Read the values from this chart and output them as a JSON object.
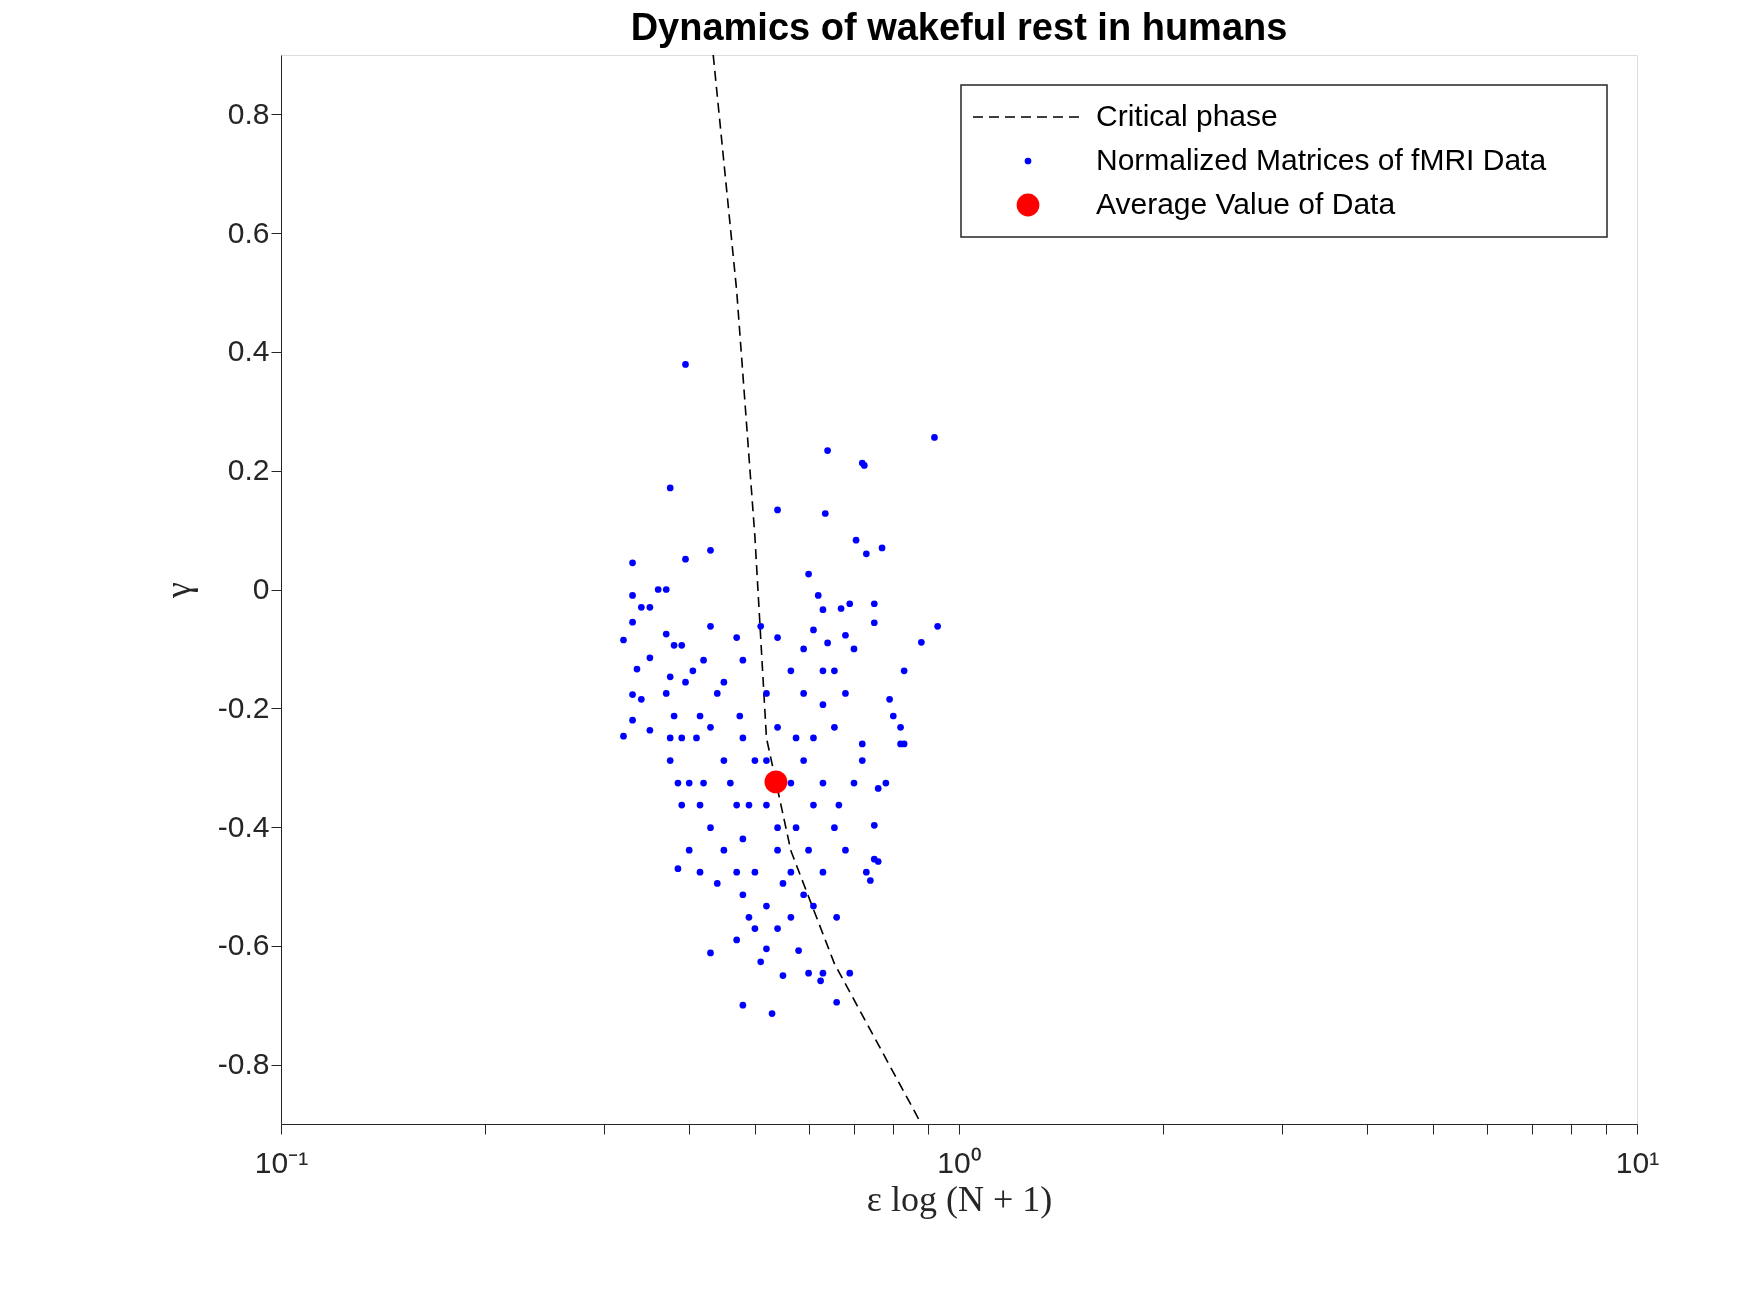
{
  "chart_data": {
    "type": "scatter",
    "title": "Dynamics of wakeful rest in humans",
    "xlabel": "ε log (N + 1)",
    "ylabel": "γ",
    "log": "x",
    "xlim": [
      0.1,
      10
    ],
    "ylim": [
      -0.9,
      0.9
    ],
    "xticks": [
      {
        "value": 0.1,
        "label": "10⁻¹"
      },
      {
        "value": 0.2,
        "label": null
      },
      {
        "value": 0.3,
        "label": null
      },
      {
        "value": 0.4,
        "label": null
      },
      {
        "value": 0.5,
        "label": null
      },
      {
        "value": 0.6,
        "label": null
      },
      {
        "value": 0.7,
        "label": null
      },
      {
        "value": 0.8,
        "label": null
      },
      {
        "value": 0.9,
        "label": null
      },
      {
        "value": 1,
        "label": "10⁰"
      },
      {
        "value": 2,
        "label": null
      },
      {
        "value": 3,
        "label": null
      },
      {
        "value": 4,
        "label": null
      },
      {
        "value": 5,
        "label": null
      },
      {
        "value": 6,
        "label": null
      },
      {
        "value": 7,
        "label": null
      },
      {
        "value": 8,
        "label": null
      },
      {
        "value": 9,
        "label": null
      },
      {
        "value": 10,
        "label": "10¹"
      }
    ],
    "yticks": [
      -0.8,
      -0.6,
      -0.4,
      -0.2,
      0,
      0.2,
      0.4,
      0.6,
      0.8
    ],
    "grid": false,
    "legend": "top right",
    "series": [
      {
        "name": "Critical phase",
        "type": "line",
        "line_style": "dashed",
        "marker": "none",
        "color": "#000000",
        "x": [
          0.434,
          0.47,
          0.5,
          0.52,
          0.565,
          0.655,
          0.88
        ],
        "values": [
          0.9,
          0.503,
          0.089,
          -0.25,
          -0.44,
          -0.63,
          -0.9
        ]
      },
      {
        "name": "Normalized Matrices of fMRI Data",
        "marker": "circle",
        "color": "#0000ff",
        "x": [
          0.395,
          0.375,
          0.33,
          0.395,
          0.43,
          0.54,
          0.64,
          0.635,
          0.72,
          0.725,
          0.92,
          0.705,
          0.73,
          0.77,
          0.93,
          0.88,
          0.6,
          0.32,
          0.33,
          0.33,
          0.34,
          0.35,
          0.36,
          0.37,
          0.37,
          0.33,
          0.32,
          0.33,
          0.34,
          0.335,
          0.35,
          0.38,
          0.375,
          0.39,
          0.42,
          0.405,
          0.395,
          0.37,
          0.38,
          0.375,
          0.35,
          0.385,
          0.43,
          0.48,
          0.53,
          0.45,
          0.47,
          0.43,
          0.62,
          0.63,
          0.67,
          0.69,
          0.75,
          0.75,
          0.68,
          0.7,
          0.64,
          0.61,
          0.83,
          0.79,
          0.82,
          0.8,
          0.82,
          0.83,
          0.78,
          0.76,
          0.72,
          0.72,
          0.7,
          0.75,
          0.75,
          0.76,
          0.74,
          0.73,
          0.66,
          0.69,
          0.66,
          0.63,
          0.625,
          0.6,
          0.58,
          0.55,
          0.51,
          0.52,
          0.47,
          0.5,
          0.565,
          0.655,
          0.63,
          0.48,
          0.5,
          0.45,
          0.47,
          0.52,
          0.565,
          0.59,
          0.61,
          0.54,
          0.48,
          0.43,
          0.415,
          0.4,
          0.41,
          0.43,
          0.39,
          0.45,
          0.5,
          0.565,
          0.63,
          0.655,
          0.68,
          0.48,
          0.52,
          0.59,
          0.54,
          0.52,
          0.565,
          0.54,
          0.51,
          0.48,
          0.59,
          0.655,
          0.68,
          0.61,
          0.63,
          0.665,
          0.4,
          0.415,
          0.44,
          0.47,
          0.39,
          0.385,
          0.42,
          0.46,
          0.49,
          0.575,
          0.6,
          0.54,
          0.55,
          0.61,
          0.54,
          0.49,
          0.575,
          0.52,
          0.475,
          0.44,
          0.415,
          0.375,
          0.59,
          0.63
        ],
        "values": [
          0.379,
          0.171,
          0.045,
          0.051,
          0.066,
          0.134,
          0.234,
          0.128,
          0.213,
          0.209,
          0.256,
          0.083,
          0.06,
          0.07,
          -0.062,
          -0.089,
          0.026,
          -0.085,
          -0.01,
          -0.055,
          -0.03,
          -0.03,
          0,
          0,
          -0.075,
          -0.177,
          -0.247,
          -0.22,
          -0.185,
          -0.134,
          -0.115,
          -0.094,
          -0.147,
          -0.094,
          -0.119,
          -0.137,
          -0.156,
          -0.175,
          -0.213,
          -0.288,
          -0.237,
          -0.47,
          -0.612,
          -0.7,
          -0.714,
          -0.156,
          -0.081,
          -0.062,
          -0.01,
          -0.034,
          -0.032,
          -0.024,
          -0.024,
          -0.056,
          -0.077,
          -0.1,
          -0.09,
          -0.068,
          -0.137,
          -0.185,
          -0.232,
          -0.213,
          -0.26,
          -0.26,
          -0.326,
          -0.335,
          -0.26,
          -0.288,
          -0.326,
          -0.397,
          -0.454,
          -0.458,
          -0.49,
          -0.476,
          -0.552,
          -0.646,
          -0.695,
          -0.646,
          -0.659,
          -0.646,
          -0.608,
          -0.65,
          -0.627,
          -0.605,
          -0.59,
          -0.571,
          -0.552,
          -0.232,
          -0.194,
          -0.25,
          -0.288,
          -0.288,
          -0.363,
          -0.363,
          -0.326,
          -0.288,
          -0.363,
          -0.401,
          -0.42,
          -0.401,
          -0.363,
          -0.326,
          -0.25,
          -0.232,
          -0.363,
          -0.439,
          -0.476,
          -0.476,
          -0.476,
          -0.401,
          -0.439,
          -0.514,
          -0.533,
          -0.514,
          -0.232,
          -0.175,
          -0.137,
          -0.081,
          -0.062,
          -0.119,
          -0.175,
          -0.137,
          -0.175,
          -0.25,
          -0.326,
          -0.363,
          -0.439,
          -0.476,
          -0.495,
          -0.476,
          -0.25,
          -0.326,
          -0.326,
          -0.326,
          -0.363,
          -0.401,
          -0.439,
          -0.439,
          -0.495,
          -0.533,
          -0.571,
          -0.552,
          -0.25,
          -0.288,
          -0.213,
          -0.175,
          -0.213,
          -0.25,
          -0.1,
          -0.137
        ]
      },
      {
        "name": "Average Value of Data",
        "marker": "circle",
        "color": "#ff0000",
        "x": [
          0.537
        ],
        "values": [
          -0.324
        ]
      }
    ]
  }
}
